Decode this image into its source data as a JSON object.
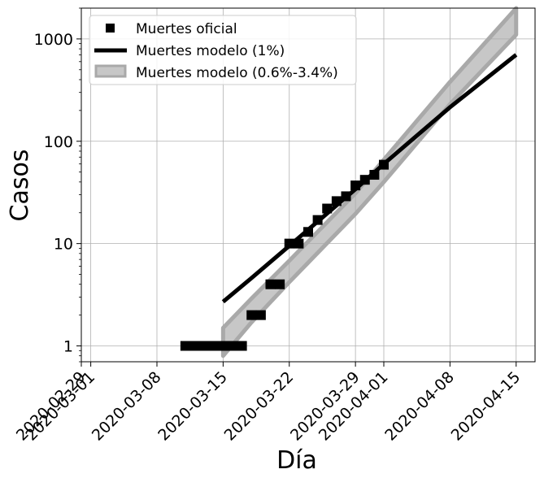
{
  "chart_data": {
    "type": "line",
    "title": "",
    "xlabel": "Día",
    "ylabel": "Casos",
    "yscale": "log",
    "ylim": [
      0.7,
      2000
    ],
    "xlim": [
      "2020-02-29",
      "2020-04-17"
    ],
    "grid": true,
    "legend_position": "top-left",
    "x_ticks": [
      "2020-02-29",
      "2020-03-01",
      "2020-03-08",
      "2020-03-15",
      "2020-03-22",
      "2020-03-29",
      "2020-04-01",
      "2020-04-08",
      "2020-04-15"
    ],
    "y_ticks": [
      {
        "value": 1,
        "label": "1"
      },
      {
        "value": 10,
        "label": "10"
      },
      {
        "value": 100,
        "label": "100"
      },
      {
        "value": 1000,
        "label": "1000"
      }
    ],
    "series": [
      {
        "name": "Muertes oficial",
        "kind": "scatter",
        "marker": "square",
        "color": "#000000",
        "points": [
          {
            "x": "2020-03-11",
            "y": 1
          },
          {
            "x": "2020-03-12",
            "y": 1
          },
          {
            "x": "2020-03-13",
            "y": 1
          },
          {
            "x": "2020-03-14",
            "y": 1
          },
          {
            "x": "2020-03-15",
            "y": 1
          },
          {
            "x": "2020-03-16",
            "y": 1
          },
          {
            "x": "2020-03-17",
            "y": 1
          },
          {
            "x": "2020-03-18",
            "y": 2
          },
          {
            "x": "2020-03-19",
            "y": 2
          },
          {
            "x": "2020-03-20",
            "y": 4
          },
          {
            "x": "2020-03-21",
            "y": 4
          },
          {
            "x": "2020-03-22",
            "y": 10
          },
          {
            "x": "2020-03-23",
            "y": 10
          },
          {
            "x": "2020-03-24",
            "y": 13
          },
          {
            "x": "2020-03-25",
            "y": 17
          },
          {
            "x": "2020-03-26",
            "y": 22
          },
          {
            "x": "2020-03-27",
            "y": 26
          },
          {
            "x": "2020-03-28",
            "y": 29
          },
          {
            "x": "2020-03-29",
            "y": 37
          },
          {
            "x": "2020-03-30",
            "y": 42
          },
          {
            "x": "2020-03-31",
            "y": 47
          },
          {
            "x": "2020-04-01",
            "y": 59
          }
        ]
      },
      {
        "name": "Muertes modelo (1%)",
        "kind": "line",
        "color": "#000000",
        "points": [
          {
            "x": "2020-03-15",
            "y": 2.7
          },
          {
            "x": "2020-03-18",
            "y": 4.6
          },
          {
            "x": "2020-03-22",
            "y": 9.5
          },
          {
            "x": "2020-03-29",
            "y": 34
          },
          {
            "x": "2020-04-01",
            "y": 60
          },
          {
            "x": "2020-04-08",
            "y": 215
          },
          {
            "x": "2020-04-15",
            "y": 700
          }
        ]
      },
      {
        "name": "Muertes modelo (0.6%-3.4%)",
        "kind": "band",
        "color": "#a9a9a9",
        "upper": [
          {
            "x": "2020-03-15",
            "y": 1.5
          },
          {
            "x": "2020-03-18",
            "y": 2.9
          },
          {
            "x": "2020-03-22",
            "y": 6.8
          },
          {
            "x": "2020-03-29",
            "y": 31
          },
          {
            "x": "2020-04-01",
            "y": 66
          },
          {
            "x": "2020-04-08",
            "y": 380
          },
          {
            "x": "2020-04-15",
            "y": 2000
          }
        ],
        "lower": [
          {
            "x": "2020-03-15",
            "y": 0.8
          },
          {
            "x": "2020-03-18",
            "y": 1.7
          },
          {
            "x": "2020-03-22",
            "y": 4.2
          },
          {
            "x": "2020-03-29",
            "y": 19.5
          },
          {
            "x": "2020-04-01",
            "y": 40
          },
          {
            "x": "2020-04-08",
            "y": 230
          },
          {
            "x": "2020-04-15",
            "y": 1100
          }
        ]
      }
    ]
  }
}
